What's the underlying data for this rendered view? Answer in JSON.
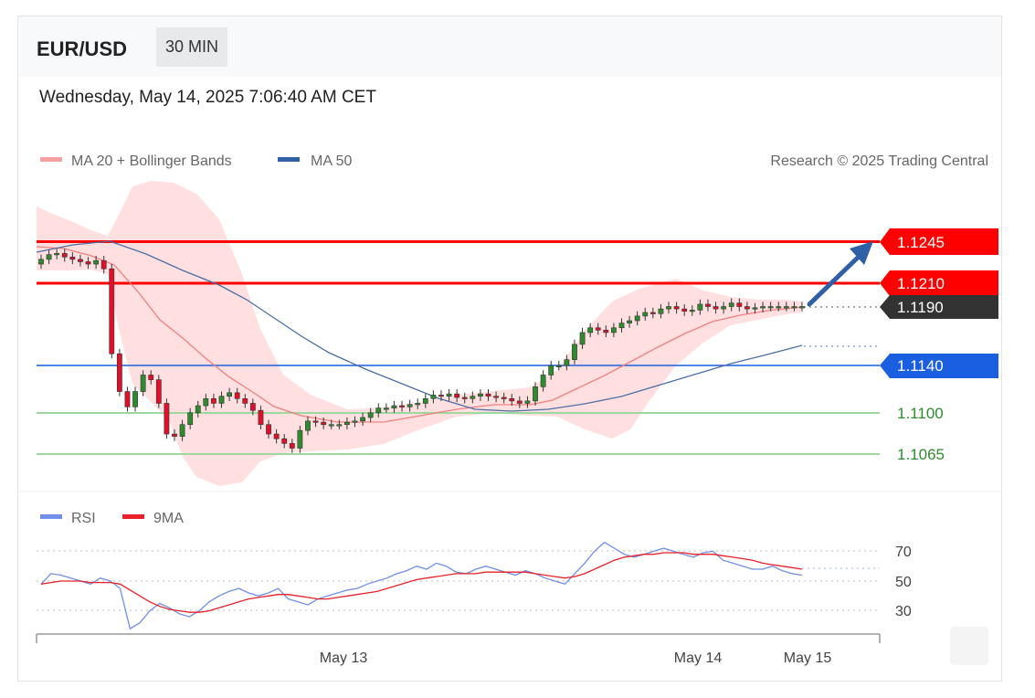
{
  "header": {
    "symbol": "EUR/USD",
    "timeframe": "30 MIN",
    "datetime": "Wednesday, May 14, 2025 7:06:40 AM CET"
  },
  "legend": {
    "ma20_label": "MA 20 + Bollinger Bands",
    "ma50_label": "MA 50",
    "credit": "Research © 2025 Trading Central",
    "rsi_label": "RSI",
    "rsi_ma_label": "9MA"
  },
  "colors": {
    "resistance": "#ff0000",
    "current": "#333333",
    "support_blue": "#1a5fe0",
    "support_green": "#2e8b2e",
    "candle_up": "#2e8b2e",
    "candle_down": "#e0102b",
    "ma20": "#f08080",
    "ma50": "#4a6fa5",
    "band": "#ffd6d6",
    "rsi": "#6f8fe8",
    "rsi_ma": "#e8202a",
    "arrow": "#2f5fa5"
  },
  "chart_data": [
    {
      "type": "candlestick",
      "title": "EUR/USD",
      "timeframe": "30 MIN",
      "x_ticks": [
        "May 13",
        "May 14",
        "May 15"
      ],
      "levels": [
        {
          "value": "1.1245",
          "kind": "resistance"
        },
        {
          "value": "1.1210",
          "kind": "resistance"
        },
        {
          "value": "1.1190",
          "kind": "last_price"
        },
        {
          "value": "1.1140",
          "kind": "support"
        },
        {
          "value": "1.1100",
          "kind": "support"
        },
        {
          "value": "1.1065",
          "kind": "support"
        }
      ],
      "close_series": [
        1.123,
        1.1234,
        1.1235,
        1.1232,
        1.123,
        1.1228,
        1.1226,
        1.1229,
        1.1222,
        1.115,
        1.1118,
        1.1105,
        1.1118,
        1.1132,
        1.1128,
        1.1108,
        1.1082,
        1.108,
        1.109,
        1.11,
        1.1106,
        1.1112,
        1.1108,
        1.1114,
        1.1117,
        1.1112,
        1.1108,
        1.1102,
        1.109,
        1.1082,
        1.1078,
        1.1074,
        1.107,
        1.1085,
        1.1093,
        1.1092,
        1.109,
        1.109,
        1.109,
        1.1092,
        1.1093,
        1.1096,
        1.11,
        1.1104,
        1.1104,
        1.1106,
        1.1105,
        1.1107,
        1.1108,
        1.1112,
        1.1115,
        1.1114,
        1.1116,
        1.1113,
        1.1112,
        1.1114,
        1.1116,
        1.1114,
        1.1113,
        1.1112,
        1.111,
        1.1108,
        1.111,
        1.1122,
        1.1132,
        1.114,
        1.114,
        1.1145,
        1.1158,
        1.1168,
        1.1172,
        1.117,
        1.1168,
        1.1172,
        1.1176,
        1.1178,
        1.1182,
        1.1185,
        1.1184,
        1.1188,
        1.119,
        1.1188,
        1.1186,
        1.1187,
        1.1192,
        1.119,
        1.1188,
        1.119,
        1.1193,
        1.119,
        1.1188,
        1.1189,
        1.119,
        1.119,
        1.119,
        1.119,
        1.119,
        1.119
      ],
      "indicators": [
        "MA 20 + Bollinger Bands",
        "MA 50"
      ]
    },
    {
      "type": "line",
      "title": "RSI",
      "y_ticks": [
        70,
        50,
        30
      ],
      "series": [
        {
          "name": "RSI",
          "values": [
            48,
            55,
            54,
            52,
            50,
            48,
            52,
            50,
            45,
            18,
            22,
            30,
            35,
            32,
            28,
            26,
            30,
            36,
            40,
            43,
            45,
            42,
            40,
            42,
            45,
            38,
            36,
            34,
            38,
            40,
            42,
            44,
            45,
            48,
            50,
            52,
            55,
            57,
            60,
            58,
            62,
            60,
            56,
            55,
            58,
            60,
            58,
            56,
            54,
            57,
            55,
            52,
            50,
            48,
            55,
            62,
            70,
            76,
            72,
            68,
            66,
            68,
            70,
            72,
            70,
            68,
            66,
            69,
            70,
            64,
            62,
            60,
            58,
            58,
            60,
            57,
            55,
            54
          ]
        },
        {
          "name": "9MA",
          "values": [
            48,
            49,
            50,
            50,
            50,
            49,
            49,
            49,
            48,
            44,
            40,
            36,
            33,
            31,
            30,
            29,
            29,
            30,
            32,
            34,
            36,
            38,
            39,
            40,
            41,
            41,
            40,
            39,
            38,
            38,
            39,
            40,
            41,
            42,
            43,
            45,
            47,
            49,
            51,
            52,
            53,
            54,
            55,
            55,
            55,
            56,
            56,
            56,
            56,
            56,
            55,
            54,
            53,
            52,
            53,
            55,
            58,
            61,
            64,
            66,
            67,
            68,
            68,
            69,
            69,
            69,
            68,
            68,
            68,
            67,
            66,
            65,
            64,
            62,
            61,
            60,
            59,
            58
          ]
        }
      ]
    }
  ]
}
